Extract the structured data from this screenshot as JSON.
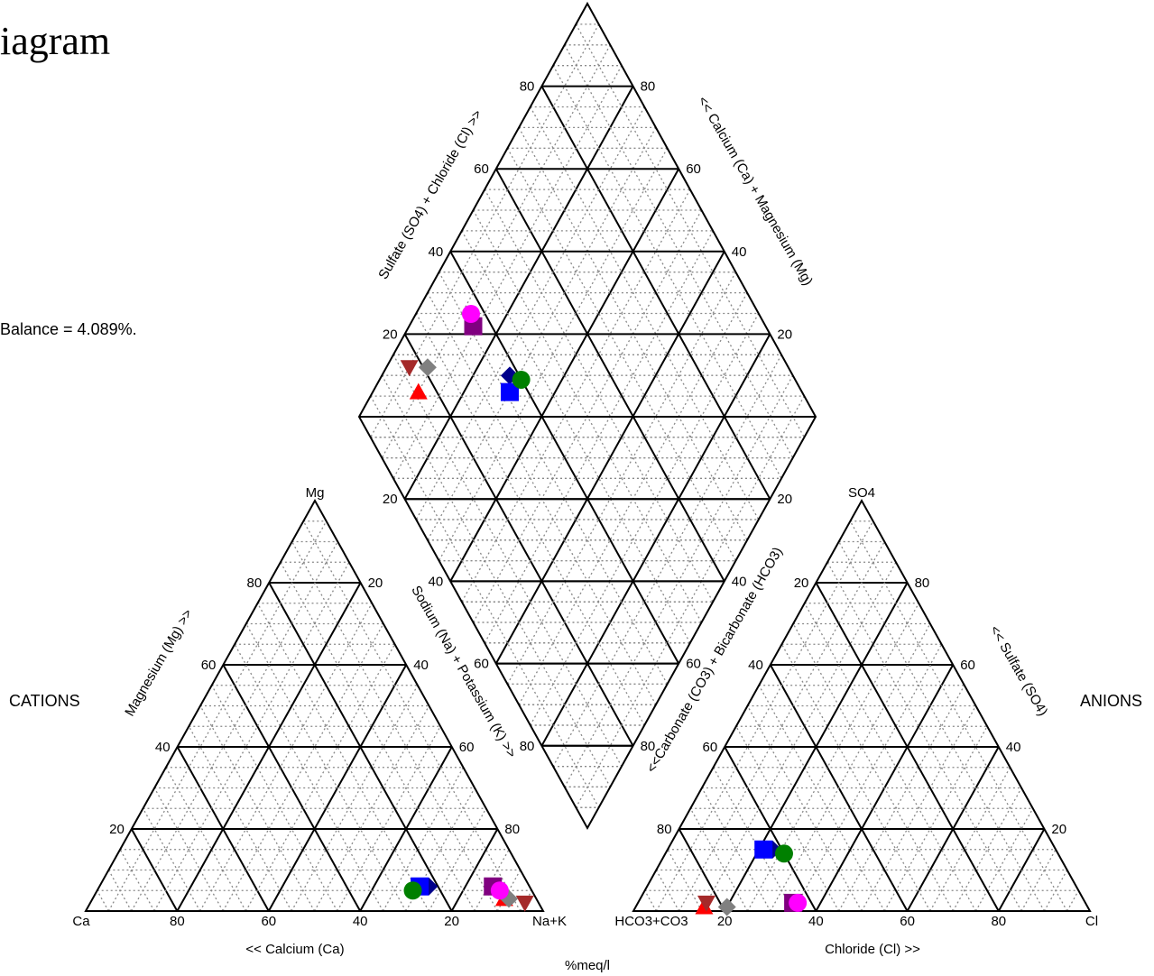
{
  "title": "iagram",
  "balance_note": "Balance = 4.089%.",
  "side_labels": {
    "cations": "CATIONS",
    "anions": "ANIONS"
  },
  "unit_label": "%meq/l",
  "cation_triangle": {
    "apex_label": "Mg",
    "left_vertex": "Ca",
    "right_vertex": "Na+K",
    "bottom_axis": "<< Calcium (Ca)",
    "left_axis": "Magnesium (Mg) >>",
    "right_axis": "Sodium (Na) + Potassium (K) >>",
    "bottom_ticks": [
      "80",
      "60",
      "40",
      "20"
    ],
    "left_ticks": [
      "20",
      "40",
      "60",
      "80"
    ],
    "right_ticks": [
      "80",
      "60",
      "40",
      "20"
    ]
  },
  "anion_triangle": {
    "apex_label": "SO4",
    "left_vertex": "HCO3+CO3",
    "right_vertex": "Cl",
    "bottom_axis": "Chloride (Cl) >>",
    "left_axis": "<<Carbonate (CO3) + Bicarbonate (HCO3)",
    "right_axis": "<< Sulfate (SO4)",
    "bottom_ticks": [
      "20",
      "40",
      "60",
      "80"
    ],
    "left_ticks": [
      "80",
      "60",
      "40",
      "20"
    ],
    "right_ticks": [
      "20",
      "40",
      "60",
      "80"
    ]
  },
  "diamond": {
    "upper_left_axis": "Sulfate (SO4) + Chloride (Cl) >>",
    "upper_right_axis": "<< Calcium (Ca) + Magnesium (Mg)",
    "upper_left_ticks": [
      "80",
      "60",
      "40",
      "20"
    ],
    "upper_right_ticks": [
      "80",
      "60",
      "40",
      "20"
    ],
    "lower_left_ticks": [
      "20",
      "40",
      "60",
      "80"
    ],
    "lower_right_ticks": [
      "20",
      "40",
      "60",
      "80"
    ]
  },
  "samples": [
    {
      "marker": "triangle-up",
      "color": "#ff0000",
      "cations": {
        "ca": 7,
        "mg": 3,
        "nak": 90
      },
      "anions": {
        "hco3": 84,
        "so4": 1,
        "cl": 15
      }
    },
    {
      "marker": "triangle-down",
      "color": "#a52a2a",
      "cations": {
        "ca": 3,
        "mg": 2,
        "nak": 95
      },
      "anions": {
        "hco3": 83,
        "so4": 2,
        "cl": 15
      }
    },
    {
      "marker": "diamond",
      "color": "#808080",
      "cations": {
        "ca": 6,
        "mg": 3,
        "nak": 91
      },
      "anions": {
        "hco3": 79,
        "so4": 1,
        "cl": 20
      }
    },
    {
      "marker": "square",
      "color": "#800080",
      "cations": {
        "ca": 8,
        "mg": 6,
        "nak": 86
      },
      "anions": {
        "hco3": 64,
        "so4": 2,
        "cl": 34
      }
    },
    {
      "marker": "circle",
      "color": "#ff00ff",
      "cations": {
        "ca": 7,
        "mg": 5,
        "nak": 88
      },
      "anions": {
        "hco3": 63,
        "so4": 2,
        "cl": 35
      }
    },
    {
      "marker": "diamond",
      "color": "#00008b",
      "cations": {
        "ca": 22,
        "mg": 6,
        "nak": 72
      },
      "anions": {
        "hco3": 62,
        "so4": 15,
        "cl": 23
      }
    },
    {
      "marker": "square",
      "color": "#0000ff",
      "cations": {
        "ca": 24,
        "mg": 6,
        "nak": 70
      },
      "anions": {
        "hco3": 64,
        "so4": 15,
        "cl": 21
      }
    },
    {
      "marker": "circle",
      "color": "#008000",
      "cations": {
        "ca": 26,
        "mg": 5,
        "nak": 69
      },
      "anions": {
        "hco3": 60,
        "so4": 14,
        "cl": 26
      }
    }
  ]
}
